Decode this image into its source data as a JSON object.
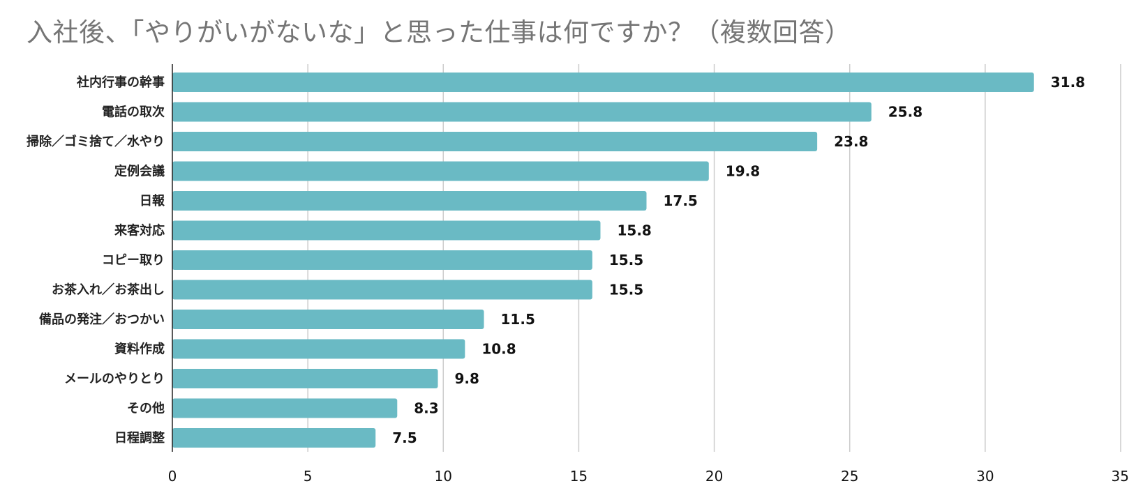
{
  "chart_data": {
    "type": "bar",
    "orientation": "horizontal",
    "title": "入社後、「やりがいがないな」と思った仕事は何ですか？（複数回答）",
    "categories": [
      "社内行事の幹事",
      "電話の取次",
      "掃除／ゴミ捨て／水やり",
      "定例会議",
      "日報",
      "来客対応",
      "コピー取り",
      "お茶入れ／お茶出し",
      "備品の発注／おつかい",
      "資料作成",
      "メールのやりとり",
      "その他",
      "日程調整"
    ],
    "values": [
      31.8,
      25.8,
      23.8,
      19.8,
      17.5,
      15.8,
      15.5,
      15.5,
      11.5,
      10.8,
      9.8,
      8.3,
      7.5
    ],
    "value_labels": [
      "31.8",
      "25.8",
      "23.8",
      "19.8",
      "17.5",
      "15.8",
      "15.5",
      "15.5",
      "11.5",
      "10.8",
      "9.8",
      "8.3",
      "7.5"
    ],
    "xlim": [
      0,
      35
    ],
    "x_ticks": [
      0,
      5,
      10,
      15,
      20,
      25,
      30,
      35
    ],
    "grid": "vertical",
    "legend": "none",
    "bar_color": "#6abac4"
  }
}
